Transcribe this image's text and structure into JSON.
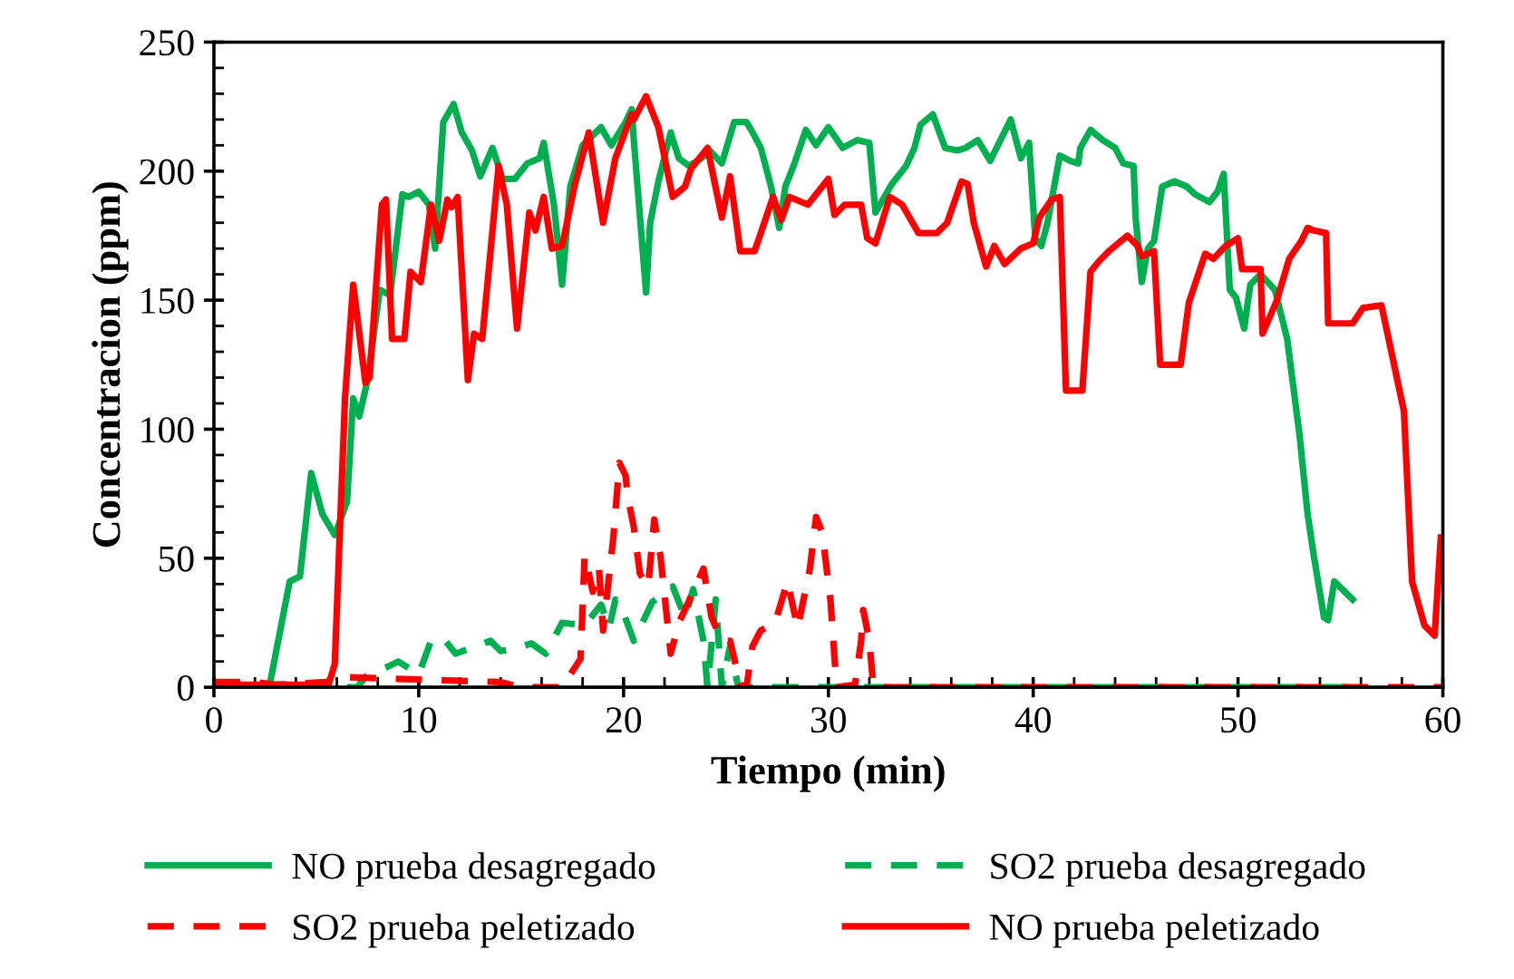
{
  "chart_data": {
    "type": "line",
    "xlabel": "Tiempo (min)",
    "ylabel": "Concentracion (ppm)",
    "xlim": [
      0,
      60
    ],
    "xticks": [
      0,
      10,
      20,
      30,
      40,
      50,
      60
    ],
    "ylim": [
      0,
      250
    ],
    "yticks": [
      0,
      50,
      100,
      150,
      200,
      250
    ],
    "grid": false,
    "legend": "bottom",
    "marker": "none",
    "series": [
      {
        "name": "NO prueba desagregado",
        "color": "#00b050",
        "line_style": "solid",
        "x": [
          0,
          2.7,
          3.7,
          4.2,
          4.75,
          5.3,
          5.9,
          6.5,
          6.8,
          7.1,
          7.5,
          8.1,
          8.6,
          9.2,
          9.5,
          10,
          10.5,
          10.8,
          11.2,
          11.7,
          12.1,
          12.6,
          13,
          13.6,
          14.1,
          14.7,
          15.3,
          15.9,
          16.1,
          16.6,
          17,
          17.4,
          18,
          18.9,
          19.4,
          20.1,
          20.4,
          20.5,
          21.1,
          21.3,
          21.7,
          22.3,
          22.7,
          23.2,
          23.8,
          24.2,
          24.8,
          25.4,
          26,
          26.3,
          26.7,
          27.2,
          27.6,
          27.9,
          28.3,
          28.9,
          29.4,
          30,
          30.7,
          31.4,
          32,
          32.3,
          33.1,
          33.8,
          34.2,
          34.5,
          35.1,
          35.7,
          36.3,
          36.7,
          37.3,
          37.9,
          38.4,
          38.9,
          39.4,
          39.8,
          40.1,
          40.4,
          40.7,
          41.3,
          41.8,
          42.2,
          42.3,
          42.8,
          43.4,
          44,
          44.4,
          44.9,
          45,
          45.3,
          45.6,
          45.9,
          46.3,
          46.9,
          47.5,
          47.9,
          48.6,
          49,
          49.3,
          49.6,
          49.9,
          50.3,
          50.6,
          51.1,
          51.8,
          52.4,
          53,
          53.4,
          53.7,
          54.2,
          54.4,
          54.7,
          55.6
        ],
        "values": [
          0,
          0,
          41,
          43,
          83,
          67,
          59,
          72,
          112,
          105,
          119,
          154,
          152,
          191,
          190,
          192,
          187,
          170,
          219,
          226,
          215,
          208,
          198,
          209,
          197,
          197,
          203,
          205,
          211,
          187,
          156,
          194,
          210,
          217,
          210,
          219,
          224,
          212,
          153,
          180,
          196,
          215,
          205,
          202,
          205,
          208,
          203,
          219,
          219,
          215,
          209,
          194,
          178,
          194,
          202,
          216,
          210,
          217,
          209,
          212,
          211,
          184,
          195,
          202,
          209,
          218,
          222,
          209,
          208,
          209,
          212,
          204,
          212,
          220,
          205,
          211,
          174,
          171,
          180,
          206,
          204,
          203,
          209,
          216,
          212,
          209,
          203,
          202,
          182,
          157,
          170,
          173,
          194,
          196,
          194,
          191,
          188,
          192,
          199,
          154,
          151,
          139,
          156,
          160,
          154,
          135,
          98,
          67,
          51,
          27,
          26,
          41,
          34
        ]
      },
      {
        "name": "SO2 prueba desagregado",
        "color": "#00b050",
        "line_style": "dashed",
        "x": [
          6.5,
          7,
          7.5,
          8.5,
          9,
          10,
          10.6,
          11.2,
          11.8,
          12.5,
          13.5,
          14,
          14.7,
          15.5,
          16.2,
          17,
          18.1,
          18.9,
          19.3,
          19.6,
          19.8,
          20.5,
          21.4,
          22.4,
          23,
          23.4,
          23.9,
          24.1,
          24.5,
          24.8,
          25.2,
          25.6,
          30,
          40,
          50,
          55.6
        ],
        "values": [
          0,
          0,
          5,
          8,
          10,
          5,
          18,
          19,
          13,
          15,
          18,
          14,
          15,
          17,
          13,
          25,
          24,
          32,
          23,
          34,
          33,
          18,
          33,
          39,
          27,
          38,
          18,
          0,
          34,
          0,
          16,
          0,
          0,
          0,
          0,
          0
        ]
      },
      {
        "name": "SO2 prueba peletizado",
        "color": "#ff0000",
        "line_style": "dashed",
        "x": [
          0,
          2,
          3,
          5.5,
          6,
          10,
          14,
          15,
          17,
          17.9,
          18.1,
          18.5,
          18.8,
          19,
          19.5,
          19.8,
          20.1,
          20.2,
          20.5,
          20.8,
          21.2,
          21.5,
          21.8,
          22.3,
          22.7,
          23.4,
          23.9,
          24.3,
          24.8,
          25.2,
          25.7,
          26,
          26.3,
          26.7,
          27.4,
          28,
          28.5,
          29.1,
          29.4,
          29.7,
          30.1,
          30.4,
          31.3,
          31.6,
          31.7,
          32,
          32.2,
          40,
          50,
          60
        ],
        "values": [
          2,
          2,
          1,
          2,
          4,
          3,
          2,
          0,
          0,
          11,
          51,
          37,
          46,
          22,
          58,
          87,
          82,
          74,
          62,
          44,
          39,
          65,
          51,
          13,
          25,
          37,
          46,
          27,
          18,
          18,
          1,
          0,
          16,
          22,
          25,
          41,
          23,
          46,
          66,
          60,
          34,
          0,
          1,
          18,
          30,
          18,
          0,
          0,
          0,
          0
        ]
      },
      {
        "name": "NO prueba peletizado",
        "color": "#ff0000",
        "line_style": "solid",
        "x": [
          0,
          3,
          5.6,
          5.9,
          6.4,
          6.8,
          7.4,
          7.6,
          8.2,
          8.4,
          8.7,
          9.3,
          9.6,
          10.1,
          10.6,
          11,
          11.4,
          11.6,
          11.9,
          12.4,
          12.7,
          13.1,
          13.9,
          14.3,
          14.8,
          15.4,
          15.7,
          16.1,
          16.5,
          17,
          17.6,
          18.3,
          19,
          19.6,
          20.4,
          20.5,
          21.1,
          21.7,
          22.4,
          23,
          23.3,
          24.1,
          24.8,
          25.2,
          25.7,
          26.4,
          27.3,
          27.7,
          28.1,
          29,
          30,
          30.3,
          30.8,
          31.6,
          31.9,
          32.3,
          33,
          33.6,
          34.4,
          35.3,
          35.8,
          36.5,
          36.8,
          37.1,
          37.7,
          38.1,
          38.6,
          39.4,
          40,
          40.3,
          40.9,
          41.3,
          41.6,
          42.4,
          42.8,
          43.2,
          43.7,
          44.6,
          45.1,
          45.3,
          45.9,
          46.2,
          47.2,
          47.6,
          48.4,
          48.8,
          49.4,
          50,
          50.2,
          51.1,
          51.2,
          51.9,
          52.5,
          53.1,
          53.4,
          53.7,
          54.3,
          54.4,
          55.6,
          56.1,
          57,
          57.3,
          58.1,
          58.5,
          59.1,
          59.6,
          59.9
        ],
        "values": [
          1,
          1,
          1,
          9,
          112,
          156,
          118,
          120,
          187,
          189,
          135,
          135,
          161,
          157,
          187,
          173,
          189,
          186,
          190,
          119,
          137,
          135,
          202,
          187,
          139,
          184,
          177,
          190,
          170,
          171,
          194,
          215,
          180,
          205,
          222,
          220,
          229,
          217,
          190,
          194,
          201,
          209,
          182,
          198,
          169,
          169,
          190,
          181,
          190,
          187,
          197,
          183,
          187,
          187,
          174,
          172,
          190,
          187,
          176,
          176,
          180,
          196,
          195,
          180,
          163,
          171,
          164,
          170,
          172,
          182,
          189,
          190,
          115,
          115,
          161,
          165,
          169,
          175,
          171,
          167,
          169,
          125,
          125,
          149,
          168,
          166,
          171,
          174,
          162,
          162,
          137,
          150,
          166,
          173,
          178,
          177,
          176,
          141,
          141,
          147,
          148,
          137,
          107,
          41,
          24,
          20,
          58
        ]
      }
    ]
  }
}
